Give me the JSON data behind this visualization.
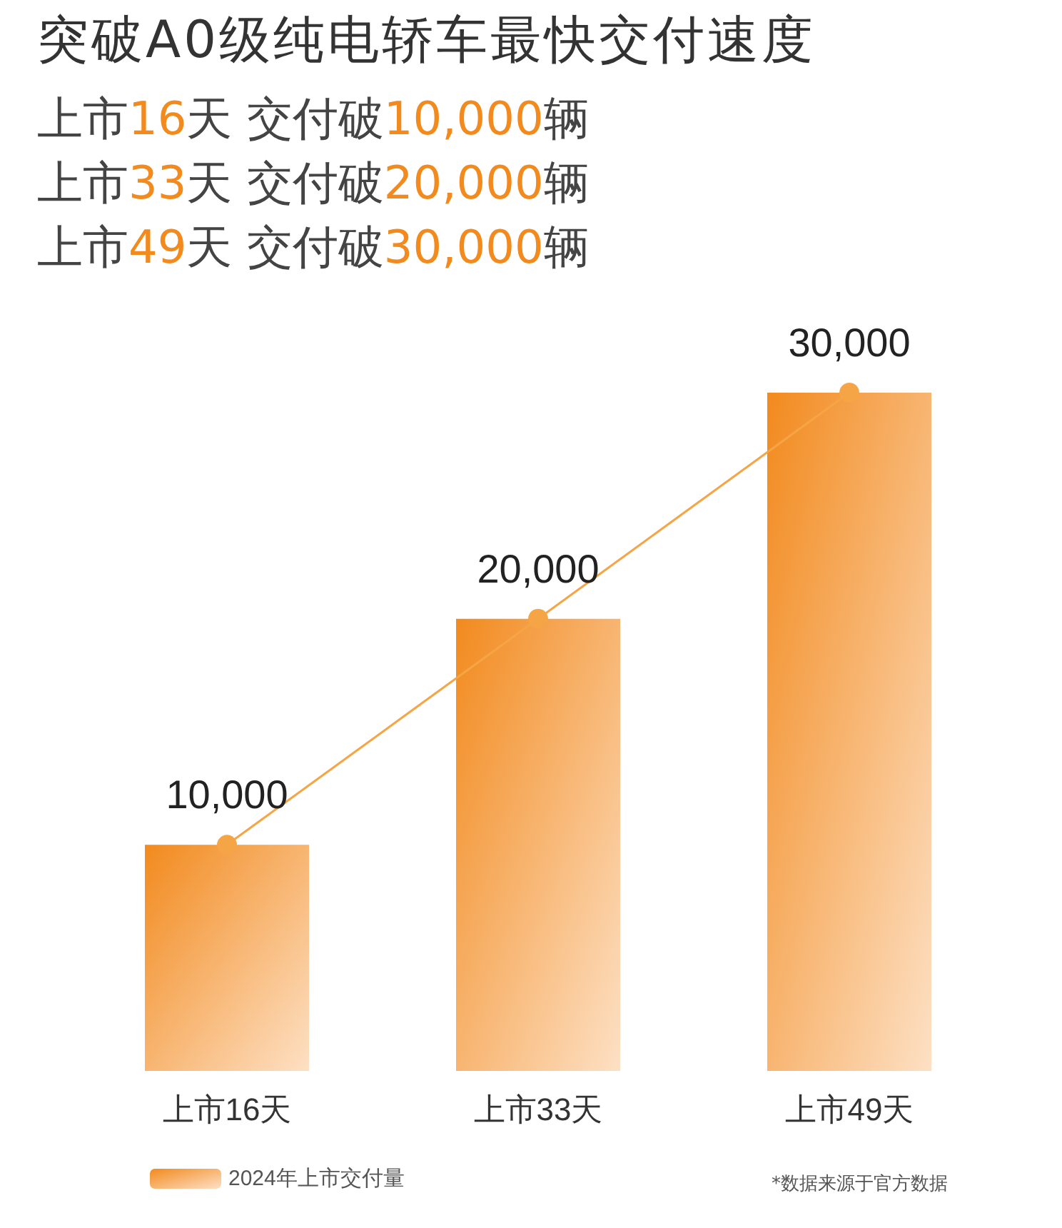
{
  "chart_data": {
    "type": "bar",
    "title": "突破A0级纯电轿车最快交付速度",
    "annotations": [
      "上市16天 交付破10,000辆",
      "上市33天 交付破20,000辆",
      "上市49天 交付破30,000辆",
      "*数据来源于官方数据"
    ],
    "categories": [
      "上市16天",
      "上市33天",
      "上市49天"
    ],
    "series": [
      {
        "name": "2024年上市交付量",
        "color": "#f28a1e",
        "values": [
          10000,
          20000,
          30000
        ]
      },
      {
        "type": "line",
        "color": "#f5a545",
        "values": [
          10000,
          20000,
          30000
        ],
        "value_labels": [
          "10,000",
          "20,000",
          "30,000"
        ]
      }
    ],
    "marker": "circle",
    "legend": "bottom left",
    "grid": false,
    "tick_labels": "x"
  }
}
